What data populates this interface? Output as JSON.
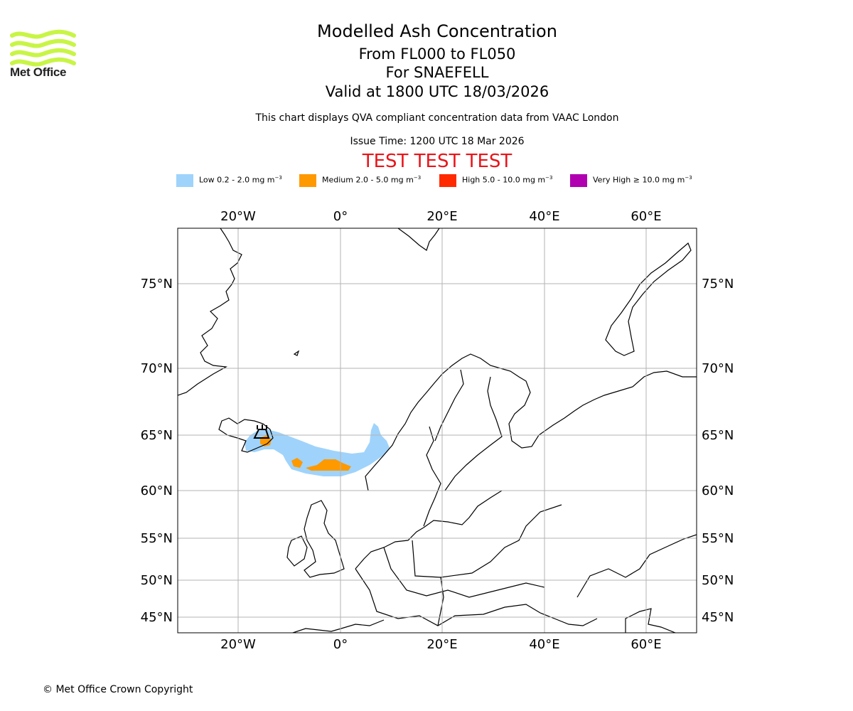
{
  "brand": {
    "name": "Met Office",
    "colors": {
      "logo": "#c8f545"
    }
  },
  "header": {
    "title": "Modelled Ash Concentration",
    "levels": "From FL000 to FL050",
    "volcano": "For SNAEFELL",
    "valid": "Valid at 1800 UTC 18/03/2026",
    "description": "This chart displays QVA compliant concentration data from VAAC London",
    "issue_time": "Issue Time: 1200 UTC 18 Mar 2026",
    "test_banner": "TEST TEST TEST"
  },
  "legend": [
    {
      "label": "Low 0.2 - 2.0 mg m",
      "color": "#9fd3fb"
    },
    {
      "label": "Medium 2.0 - 5.0 mg m",
      "color": "#ff9900"
    },
    {
      "label": "High 5.0 - 10.0 mg m",
      "color": "#ff2a00"
    },
    {
      "label": "Very High ≥ 10.0 mg m",
      "color": "#b000b0"
    }
  ],
  "legend_unit_exponent": "−3",
  "map": {
    "longitude_labels": [
      "20°W",
      "0°",
      "20°E",
      "40°E",
      "60°E"
    ],
    "latitude_labels": [
      "75°N",
      "70°N",
      "65°N",
      "60°N",
      "55°N",
      "50°N",
      "45°N"
    ],
    "volcano_marker": "volcano-symbol"
  },
  "footer": {
    "copyright": "© Met Office Crown Copyright"
  }
}
